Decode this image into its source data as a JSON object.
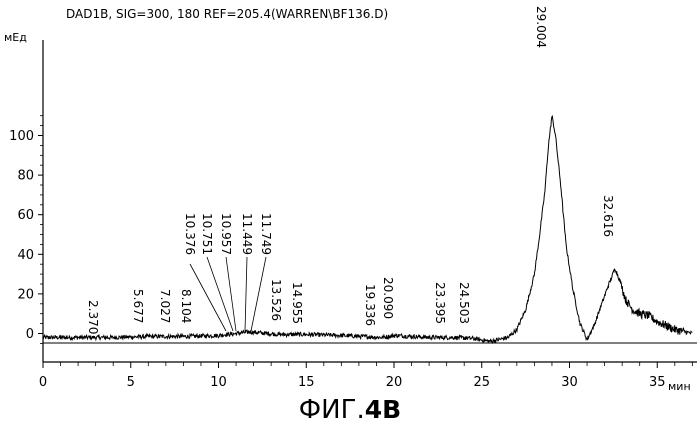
{
  "header": "DAD1B, SIG=300, 180 REF=205.4(WARREN\\BF136.D)",
  "caption_prefix": "ФИГ.",
  "caption_suffix": "4B",
  "chart_data": {
    "type": "line",
    "title": "DAD1B, SIG=300, 180 REF=205.4(WARREN\\BF136.D)",
    "xlabel": "мин",
    "ylabel": "мЕд",
    "xlim": [
      0,
      37
    ],
    "ylim": [
      -8,
      118
    ],
    "xticks": [
      0,
      5,
      10,
      15,
      20,
      25,
      30,
      35
    ],
    "yticks": [
      0,
      20,
      40,
      60,
      80,
      100
    ],
    "grid": false,
    "legend": "none",
    "line_color": "#000000",
    "series": [
      {
        "x": [
          0,
          2,
          4,
          6,
          8,
          10,
          10.4,
          10.8,
          11,
          11.45,
          11.75,
          13.5,
          15,
          17,
          19.3,
          20.1,
          22,
          23.4,
          24.5,
          25.5,
          26.5,
          27,
          27.5,
          28,
          28.3,
          28.6,
          28.8,
          29.0,
          29.2,
          29.5,
          29.8,
          30.2,
          30.6,
          31.0,
          31.4,
          31.8,
          32.2,
          32.6,
          32.9,
          33.2,
          33.6,
          34,
          34.5,
          35,
          36,
          37
        ],
        "values": [
          -2,
          -2,
          -2,
          -1.5,
          -1.5,
          -1,
          -0.5,
          -0.3,
          0,
          0.5,
          0.8,
          -0.5,
          -0.5,
          -1,
          -2,
          -1,
          -2,
          -2,
          -2.5,
          -4,
          -2,
          2,
          12,
          30,
          50,
          72,
          95,
          110,
          100,
          75,
          45,
          22,
          5,
          -3,
          4,
          14,
          24,
          33,
          26,
          17,
          12,
          10,
          9,
          6,
          2,
          0
        ]
      }
    ],
    "annotations": [
      "2.370",
      "5.677",
      "7.027",
      "8.104",
      "10.376",
      "10.751",
      "10.957",
      "11.449",
      "11.749",
      "13.526",
      "14.955",
      "19.336",
      "20.090",
      "23.395",
      "24.503",
      "29.004",
      "32.616"
    ]
  }
}
